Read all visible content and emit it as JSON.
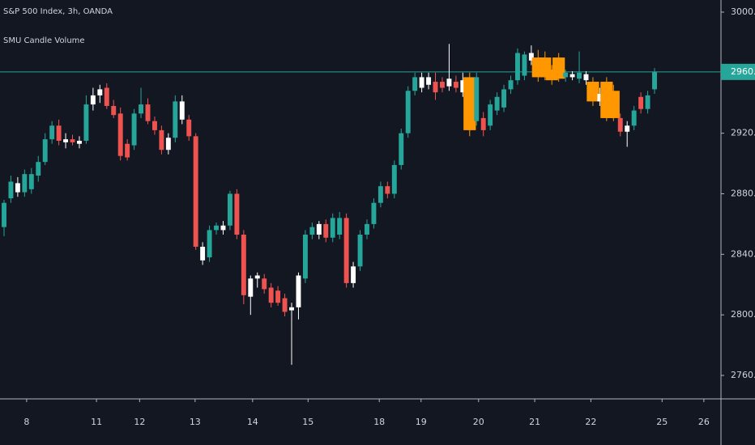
{
  "chart_data": {
    "type": "candlestick",
    "title": "S&P 500 Index, 3h, OANDA",
    "subtitle": "SMU Candle Volume",
    "open": [
      2858,
      2877,
      2881,
      2881,
      2883,
      2892,
      2901,
      2916,
      2925,
      2914,
      2916,
      2913,
      2915,
      2939,
      2945,
      2950,
      2938,
      2933,
      2913,
      2912,
      2933,
      2939,
      2928,
      2922,
      2909,
      2917,
      2929,
      2929,
      2918,
      2836,
      2838,
      2856,
      2856,
      2859,
      2880,
      2853,
      2812,
      2824,
      2824,
      2818,
      2816,
      2811,
      2803,
      2805,
      2824,
      2853,
      2853,
      2860,
      2851,
      2853,
      2864,
      2821,
      2832,
      2853,
      2860,
      2874,
      2885,
      2880,
      2899,
      2920,
      2948,
      2950,
      2952,
      2954,
      2954,
      2951,
      2954,
      2947,
      2957,
      2928,
      2930,
      2925,
      2935,
      2937,
      2949,
      2955,
      2958,
      2968,
      2970,
      2970,
      2962,
      2970,
      2957,
      2957,
      2956,
      2955,
      2954,
      2941,
      2954,
      2948,
      2930,
      2921,
      2925,
      2944,
      2936,
      2949
    ],
    "high": [
      2876,
      2892,
      2891,
      2896,
      2897,
      2905,
      2920,
      2928,
      2929,
      2920,
      2919,
      2918,
      2945,
      2950,
      2952,
      2953,
      2942,
      2937,
      2916,
      2936,
      2950,
      2943,
      2931,
      2925,
      2920,
      2945,
      2945,
      2932,
      2920,
      2848,
      2859,
      2861,
      2862,
      2882,
      2883,
      2856,
      2826,
      2828,
      2827,
      2821,
      2819,
      2814,
      2808,
      2828,
      2856,
      2861,
      2862,
      2863,
      2867,
      2868,
      2867,
      2835,
      2856,
      2863,
      2877,
      2888,
      2888,
      2902,
      2923,
      2951,
      2960,
      2960,
      2960,
      2960,
      2957,
      2979,
      2958,
      2960,
      2960,
      2960,
      2934,
      2942,
      2947,
      2952,
      2958,
      2976,
      2974,
      2978,
      2975,
      2974,
      2965,
      2973,
      2962,
      2961,
      2974,
      2961,
      2957,
      2950,
      2957,
      2952,
      2933,
      2928,
      2938,
      2947,
      2948,
      2963
    ],
    "low": [
      2852,
      2874,
      2878,
      2878,
      2880,
      2888,
      2899,
      2913,
      2912,
      2910,
      2912,
      2910,
      2913,
      2935,
      2940,
      2936,
      2930,
      2902,
      2902,
      2909,
      2930,
      2926,
      2919,
      2906,
      2906,
      2914,
      2926,
      2915,
      2843,
      2833,
      2835,
      2853,
      2853,
      2856,
      2850,
      2807,
      2800,
      2818,
      2814,
      2805,
      2806,
      2799,
      2767,
      2797,
      2821,
      2850,
      2850,
      2848,
      2848,
      2850,
      2818,
      2818,
      2829,
      2850,
      2857,
      2871,
      2877,
      2877,
      2896,
      2917,
      2945,
      2947,
      2949,
      2942,
      2947,
      2948,
      2947,
      2944,
      2918,
      2925,
      2918,
      2922,
      2932,
      2934,
      2946,
      2952,
      2955,
      2965,
      2954,
      2955,
      2952,
      2954,
      2954,
      2955,
      2953,
      2952,
      2938,
      2938,
      2928,
      2928,
      2918,
      2911,
      2922,
      2933,
      2933,
      2946
    ],
    "close": [
      2874,
      2888,
      2887,
      2893,
      2893,
      2901,
      2916,
      2925,
      2915,
      2916,
      2914,
      2915,
      2939,
      2945,
      2949,
      2938,
      2932,
      2905,
      2904,
      2933,
      2939,
      2928,
      2922,
      2909,
      2917,
      2941,
      2941,
      2918,
      2845,
      2845,
      2856,
      2859,
      2859,
      2880,
      2853,
      2813,
      2824,
      2826,
      2817,
      2808,
      2808,
      2802,
      2805,
      2826,
      2853,
      2858,
      2860,
      2851,
      2864,
      2864,
      2821,
      2832,
      2853,
      2860,
      2874,
      2885,
      2880,
      2899,
      2920,
      2948,
      2957,
      2957,
      2957,
      2947,
      2950,
      2956,
      2950,
      2955,
      2922,
      2957,
      2922,
      2939,
      2944,
      2949,
      2955,
      2973,
      2972,
      2973,
      2957,
      2957,
      2955,
      2956,
      2960,
      2959,
      2960,
      2959,
      2941,
      2946,
      2930,
      2930,
      2921,
      2925,
      2935,
      2936,
      2945,
      2960.5
    ],
    "colors": [
      "#26a69a",
      "#26a69a",
      "#ffffff",
      "#26a69a",
      "#26a69a",
      "#26a69a",
      "#26a69a",
      "#26a69a",
      "#ef5350",
      "#ffffff",
      "#ef5350",
      "#ffffff",
      "#26a69a",
      "#ffffff",
      "#ffffff",
      "#ef5350",
      "#ef5350",
      "#ef5350",
      "#ef5350",
      "#26a69a",
      "#26a69a",
      "#ef5350",
      "#ef5350",
      "#ef5350",
      "#ffffff",
      "#26a69a",
      "#ffffff",
      "#ef5350",
      "#ef5350",
      "#ffffff",
      "#26a69a",
      "#26a69a",
      "#ffffff",
      "#26a69a",
      "#ef5350",
      "#ef5350",
      "#ffffff",
      "#ffffff",
      "#ef5350",
      "#ef5350",
      "#ef5350",
      "#ef5350",
      "#ffffff",
      "#ffffff",
      "#26a69a",
      "#26a69a",
      "#ffffff",
      "#ef5350",
      "#26a69a",
      "#26a69a",
      "#ef5350",
      "#ffffff",
      "#26a69a",
      "#26a69a",
      "#26a69a",
      "#26a69a",
      "#ef5350",
      "#26a69a",
      "#26a69a",
      "#26a69a",
      "#26a69a",
      "#ffffff",
      "#ffffff",
      "#ef5350",
      "#ef5350",
      "#ffffff",
      "#ef5350",
      "#ffffff",
      "#ff9800",
      "#26a69a",
      "#ef5350",
      "#26a69a",
      "#26a69a",
      "#26a69a",
      "#26a69a",
      "#26a69a",
      "#26a69a",
      "#ffffff",
      "#ff9800",
      "#ff9800",
      "#ff9800",
      "#ff9800",
      "#26a69a",
      "#ffffff",
      "#26a69a",
      "#ffffff",
      "#ff9800",
      "#ffffff",
      "#ff9800",
      "#ff9800",
      "#ef5350",
      "#ffffff",
      "#26a69a",
      "#ef5350",
      "#26a69a",
      "#26a69a"
    ],
    "wide_color": "#ff9800",
    "xlim": [
      -0.59,
      104.7
    ],
    "xticks": [
      {
        "value": 3.3,
        "label": "8"
      },
      {
        "value": 13.5,
        "label": "11"
      },
      {
        "value": 19.8,
        "label": "12"
      },
      {
        "value": 27.9,
        "label": "13"
      },
      {
        "value": 36.3,
        "label": "14"
      },
      {
        "value": 44.4,
        "label": "15"
      },
      {
        "value": 54.8,
        "label": "18"
      },
      {
        "value": 60.9,
        "label": "19"
      },
      {
        "value": 69.3,
        "label": "20"
      },
      {
        "value": 77.5,
        "label": "21"
      },
      {
        "value": 85.7,
        "label": "22"
      },
      {
        "value": 96.1,
        "label": "25"
      },
      {
        "value": 102.2,
        "label": "26"
      }
    ],
    "ylim": [
      2744.5,
      3008
    ],
    "yticks": [
      {
        "value": 2760,
        "label": "2760.0"
      },
      {
        "value": 2800,
        "label": "2800.0"
      },
      {
        "value": 2840,
        "label": "2840.0"
      },
      {
        "value": 2880,
        "label": "2880.0"
      },
      {
        "value": 2920,
        "label": "2920.0"
      },
      {
        "value": 2960,
        "label": "2960.0"
      },
      {
        "value": 3000,
        "label": "3000.0"
      }
    ],
    "price_line": 2960.5,
    "price_line_color": "#26a69a",
    "grid": false
  }
}
